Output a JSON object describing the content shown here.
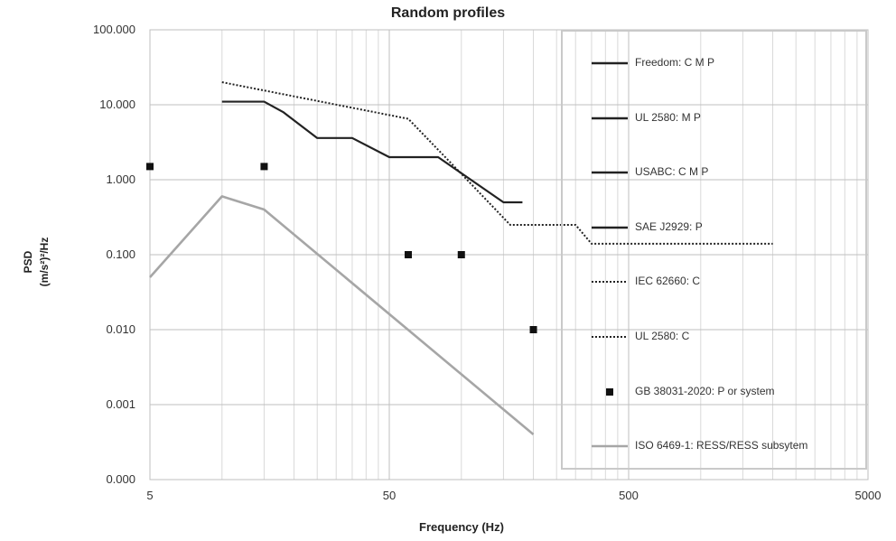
{
  "chart_data": {
    "type": "line",
    "title": "Random profiles",
    "xlabel": "Frequency (Hz)",
    "ylabel_line1": "PSD",
    "ylabel_line2": "(m/s²)²/Hz",
    "x_scale": "log",
    "y_scale": "log",
    "xlim": [
      5,
      5000
    ],
    "ylim": [
      0.0001,
      100
    ],
    "x_ticks": [
      5,
      50,
      500,
      5000
    ],
    "x_tick_labels": [
      "5",
      "50",
      "500",
      "5000"
    ],
    "y_ticks": [
      0.0001,
      0.001,
      0.01,
      0.1,
      1,
      10,
      100
    ],
    "y_tick_labels": [
      "0.000",
      "0.001",
      "0.010",
      "0.100",
      "1.000",
      "10.000",
      "100.000"
    ],
    "grid": true,
    "legend_position": "right",
    "series": [
      {
        "name": "Freedom: C M P",
        "style": "solid",
        "color": "#222222",
        "x": [
          10,
          15,
          18,
          25,
          35,
          50,
          80,
          150,
          180
        ],
        "y": [
          11,
          11,
          8,
          3.6,
          3.6,
          2,
          2,
          0.5,
          0.5
        ]
      },
      {
        "name": "UL 2580: M P",
        "style": "solid",
        "color": "#222222",
        "x": [],
        "y": []
      },
      {
        "name": "USABC: C M P",
        "style": "solid",
        "color": "#222222",
        "x": [],
        "y": []
      },
      {
        "name": "SAE J2929: P",
        "style": "solid",
        "color": "#222222",
        "x": [],
        "y": []
      },
      {
        "name": "IEC 62660: C",
        "style": "dotted",
        "color": "#222222",
        "x": [
          10,
          60,
          100,
          160,
          300,
          350,
          2000
        ],
        "y": [
          20,
          6.5,
          1.2,
          0.25,
          0.25,
          0.14,
          0.14
        ]
      },
      {
        "name": "UL 2580: C",
        "style": "dotted",
        "color": "#222222",
        "x": [],
        "y": []
      },
      {
        "name": "GB 38031-2020: P or system",
        "style": "marker",
        "color": "#111111",
        "x": [
          5,
          15,
          60,
          100,
          200
        ],
        "y": [
          1.5,
          1.5,
          0.1,
          0.1,
          0.01
        ]
      },
      {
        "name": "ISO 6469-1: RESS/RESS subsytem",
        "style": "solid",
        "color": "#a6a6a6",
        "x": [
          5,
          10,
          15,
          200
        ],
        "y": [
          0.05,
          0.6,
          0.4,
          0.0004
        ]
      }
    ]
  }
}
